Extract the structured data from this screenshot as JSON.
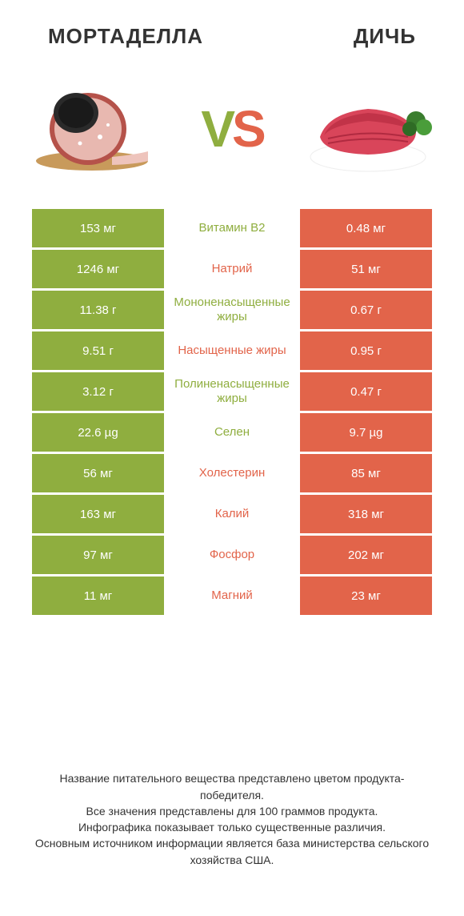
{
  "header": {
    "left_title": "МОРТАДЕЛЛА",
    "right_title": "ДИЧЬ"
  },
  "vs": {
    "v": "V",
    "s": "S"
  },
  "colors": {
    "green": "#8fae3f",
    "red": "#e2644a",
    "white": "#ffffff",
    "text": "#333333"
  },
  "rows": [
    {
      "left": "153 мг",
      "label": "Витамин B2",
      "winner": "green",
      "right": "0.48 мг"
    },
    {
      "left": "1246 мг",
      "label": "Натрий",
      "winner": "red",
      "right": "51 мг"
    },
    {
      "left": "11.38 г",
      "label": "Мононенасыщенные жиры",
      "winner": "green",
      "right": "0.67 г"
    },
    {
      "left": "9.51 г",
      "label": "Насыщенные жиры",
      "winner": "red",
      "right": "0.95 г"
    },
    {
      "left": "3.12 г",
      "label": "Полиненасыщенные жиры",
      "winner": "green",
      "right": "0.47 г"
    },
    {
      "left": "22.6 µg",
      "label": "Селен",
      "winner": "green",
      "right": "9.7 µg"
    },
    {
      "left": "56 мг",
      "label": "Холестерин",
      "winner": "red",
      "right": "85 мг"
    },
    {
      "left": "163 мг",
      "label": "Калий",
      "winner": "red",
      "right": "318 мг"
    },
    {
      "left": "97 мг",
      "label": "Фосфор",
      "winner": "red",
      "right": "202 мг"
    },
    {
      "left": "11 мг",
      "label": "Магний",
      "winner": "red",
      "right": "23 мг"
    }
  ],
  "footer": {
    "line1": "Название питательного вещества представлено цветом продукта-победителя.",
    "line2": "Все значения представлены для 100 граммов продукта.",
    "line3": "Инфографика показывает только существенные различия.",
    "line4": "Основным источником информации является база министерства сельского хозяйства США."
  }
}
